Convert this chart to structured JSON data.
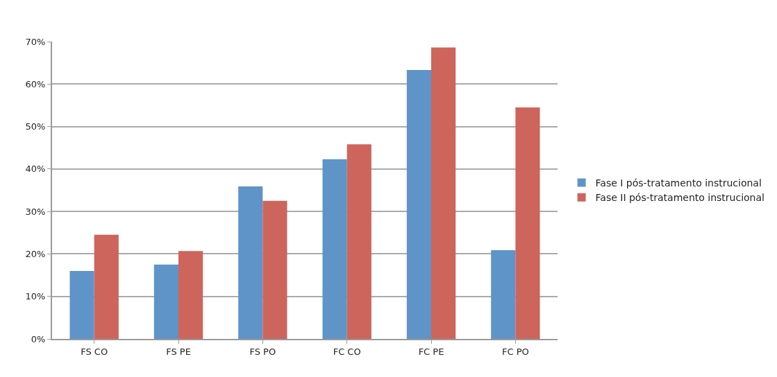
{
  "chart_data": {
    "type": "bar",
    "categories": [
      "FS CO",
      "FS PE",
      "FS PO",
      "FC CO",
      "FC PE",
      "FC PO"
    ],
    "series": [
      {
        "name": "Fase I pós-tratamento instrucional",
        "color": "#5f94c8",
        "values": [
          16.0,
          17.5,
          35.9,
          42.3,
          63.3,
          20.9
        ]
      },
      {
        "name": "Fase II pós-tratamento instrucional",
        "color": "#cd655d",
        "values": [
          24.5,
          20.7,
          32.5,
          45.8,
          68.6,
          54.5
        ]
      }
    ],
    "ylim": [
      0,
      70
    ],
    "yticks": [
      {
        "value": 0,
        "label": "0%"
      },
      {
        "value": 10,
        "label": "10%"
      },
      {
        "value": 20,
        "label": "20%"
      },
      {
        "value": 30,
        "label": "30%"
      },
      {
        "value": 40,
        "label": "40%"
      },
      {
        "value": 50,
        "label": "50%"
      },
      {
        "value": 60,
        "label": "60%"
      },
      {
        "value": 70,
        "label": "70%"
      }
    ],
    "grid": "y",
    "legend": "right"
  }
}
